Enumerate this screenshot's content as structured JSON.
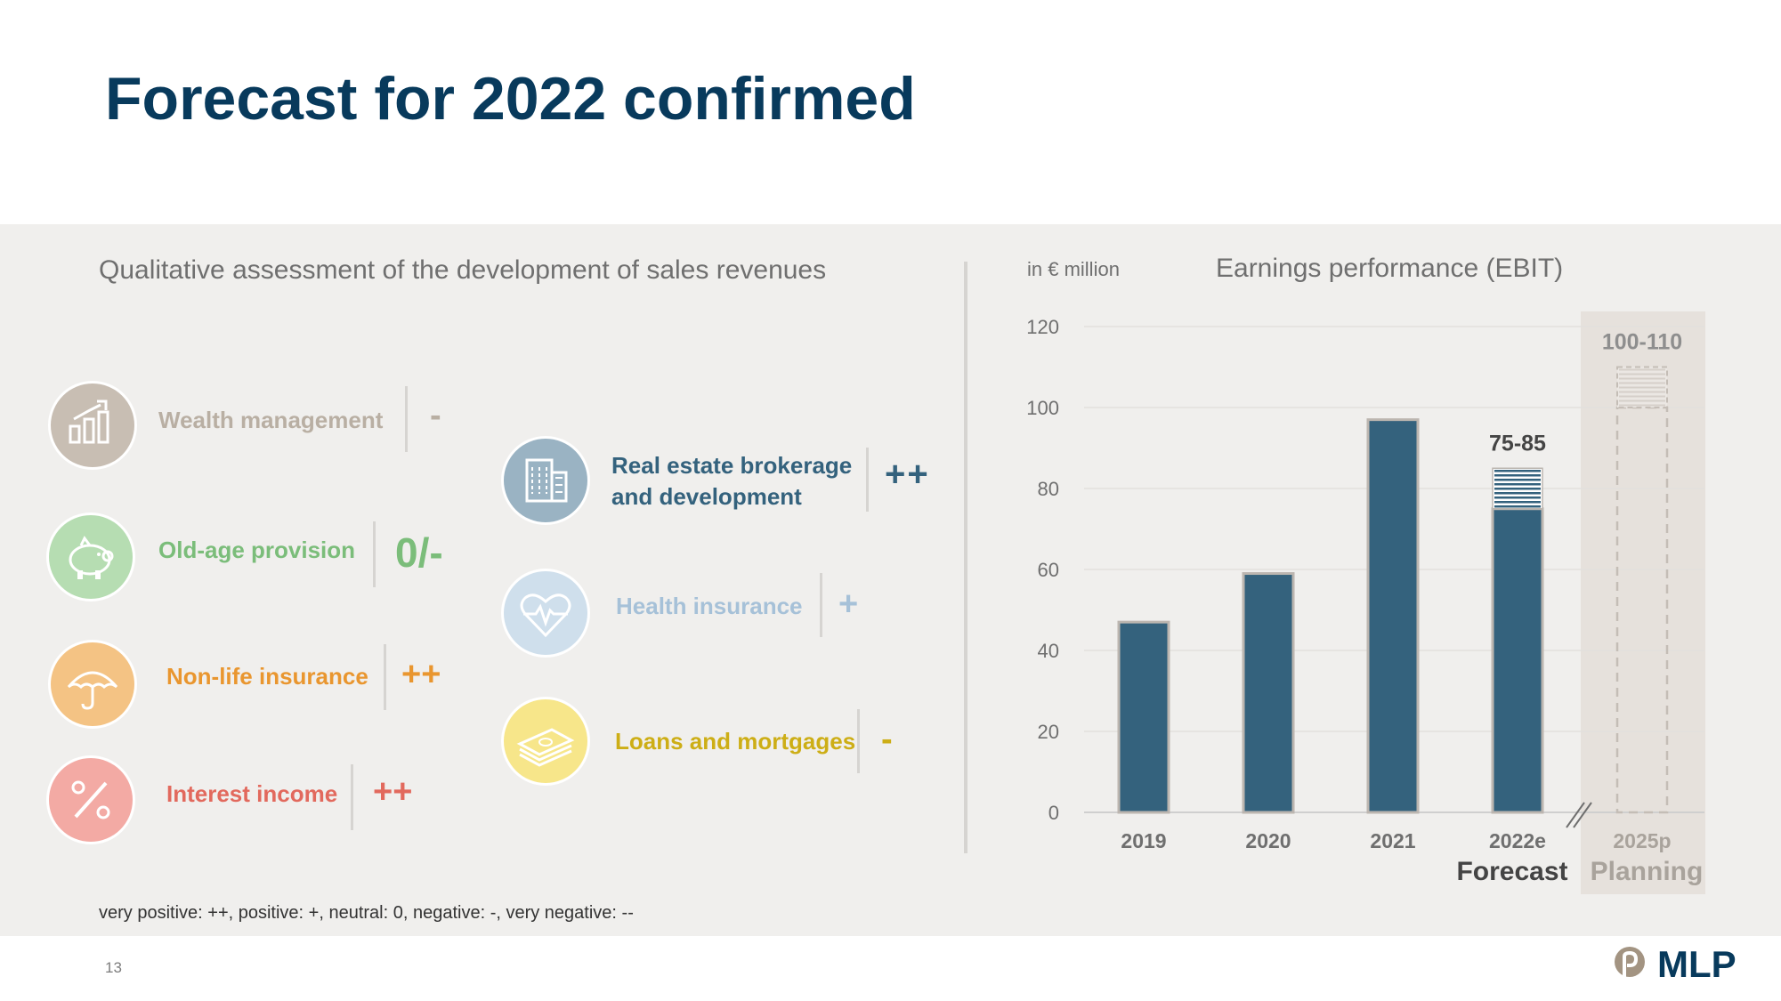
{
  "page": {
    "title": "Forecast for 2022 confirmed",
    "left_heading": "Qualitative assessment of the development of sales revenues",
    "footnote": "very positive: ++, positive: +, neutral: 0, negative: -, very negative: --",
    "page_number": "13",
    "logo_text": "MLP"
  },
  "colors": {
    "title": "#083a5c",
    "panel_bg": "#f0efed",
    "bar": "#34627d",
    "wealth": "#b9afa3",
    "oldage": "#7bbd7a",
    "nonlife": "#e9962f",
    "interest": "#e2695d",
    "realestate": "#34627d",
    "health": "#a6c1d8",
    "loans": "#cdae16"
  },
  "segments": {
    "wealth": {
      "name": "Wealth management",
      "rating": "-",
      "icon": "bar-chart-icon"
    },
    "oldage": {
      "name": "Old-age provision",
      "rating": "0/-",
      "icon": "piggy-bank-icon"
    },
    "nonlife": {
      "name": "Non-life insurance",
      "rating": "++",
      "icon": "umbrella-icon"
    },
    "interest": {
      "name": "Interest income",
      "rating": "++",
      "icon": "percent-icon"
    },
    "realestate": {
      "name_line1": "Real estate brokerage",
      "name_line2": "and development",
      "rating": "++",
      "icon": "building-icon"
    },
    "health": {
      "name": "Health insurance",
      "rating": "+",
      "icon": "heart-pulse-icon"
    },
    "loans": {
      "name": "Loans and mortgages",
      "rating": "-",
      "icon": "banknotes-icon"
    }
  },
  "chart_data": {
    "type": "bar",
    "title": "Earnings performance (EBIT)",
    "unit_label": "in € million",
    "categories": [
      "2019",
      "2020",
      "2021",
      "2022e",
      "2025p"
    ],
    "values": [
      47,
      59,
      97,
      75,
      100
    ],
    "range_top": [
      null,
      null,
      null,
      85,
      110
    ],
    "range_labels": [
      "",
      "",
      "",
      "75-85",
      "100-110"
    ],
    "section_labels": {
      "forecast": "Forecast",
      "planning": "Planning"
    },
    "ylim": [
      0,
      120
    ],
    "yticks": [
      0,
      20,
      40,
      60,
      80,
      100,
      120
    ],
    "grid": true,
    "axis_break_between": [
      "2022e",
      "2025p"
    ]
  }
}
